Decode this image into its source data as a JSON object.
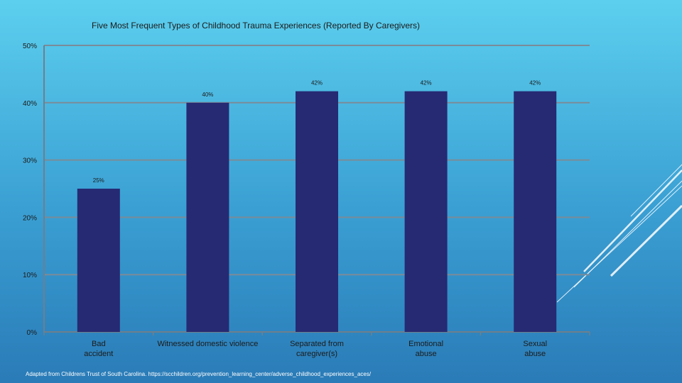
{
  "chart_data": {
    "type": "bar",
    "title": "Five Most Frequent Types of Childhood Trauma Experiences (Reported By Caregivers)",
    "categories": [
      [
        "Bad",
        "accident"
      ],
      [
        "Witnessed domestic violence"
      ],
      [
        "Separated from",
        "caregiver(s)"
      ],
      [
        "Emotional",
        "abuse"
      ],
      [
        "Sexual",
        "abuse"
      ]
    ],
    "values": [
      25,
      40,
      42,
      42,
      42
    ],
    "data_labels": [
      "25%",
      "40%",
      "42%",
      "42%",
      "42%"
    ],
    "ylim": [
      0,
      50
    ],
    "yticks": [
      0,
      10,
      20,
      30,
      40,
      50
    ],
    "ytick_labels": [
      "0%",
      "10%",
      "20%",
      "30%",
      "40%",
      "50%"
    ],
    "grid": true,
    "xlabel": "",
    "ylabel": ""
  },
  "colors": {
    "bar": "#262a73",
    "grid": "#7a8c99",
    "axis": "#6f7f8c",
    "decor": "#ffffff"
  },
  "footer": {
    "source": "Adapted from Childrens Trust of South Carolina. https://scchildren.org/prevention_learning_center/adverse_childhood_experiences_aces/"
  }
}
